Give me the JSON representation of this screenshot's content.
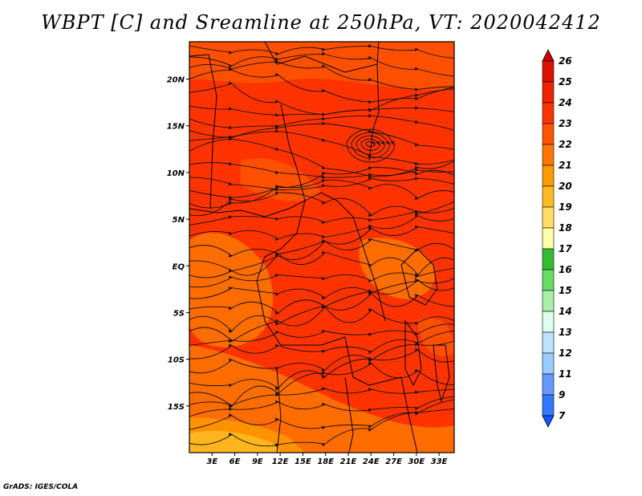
{
  "title": "WBPT [C] and Sreamline at 250hPa, VT: 2020042412",
  "footer": "GrADS: IGES/COLA",
  "map": {
    "lon_range": [
      0,
      35
    ],
    "lat_range": [
      -20,
      24
    ],
    "lat_ticks": [
      {
        "value": 20,
        "label": "20N"
      },
      {
        "value": 15,
        "label": "15N"
      },
      {
        "value": 10,
        "label": "10N"
      },
      {
        "value": 5,
        "label": "5N"
      },
      {
        "value": 0,
        "label": "EQ"
      },
      {
        "value": -5,
        "label": "5S"
      },
      {
        "value": -10,
        "label": "10S"
      },
      {
        "value": -15,
        "label": "15S"
      }
    ],
    "lon_ticks": [
      {
        "value": 3,
        "label": "3E"
      },
      {
        "value": 6,
        "label": "6E"
      },
      {
        "value": 9,
        "label": "9E"
      },
      {
        "value": 12,
        "label": "12E"
      },
      {
        "value": 15,
        "label": "15E"
      },
      {
        "value": 18,
        "label": "18E"
      },
      {
        "value": 21,
        "label": "21E"
      },
      {
        "value": 24,
        "label": "24E"
      },
      {
        "value": 27,
        "label": "27E"
      },
      {
        "value": 30,
        "label": "30E"
      },
      {
        "value": 33,
        "label": "33E"
      }
    ],
    "field_colors": {
      "dominant": "#ff3300",
      "warm": "#ff5500",
      "warmer": "#ff7700",
      "hot": "#ff9900",
      "hottest": "#ffbb22"
    },
    "streamline_color": "#111111",
    "border_color": "#000000"
  },
  "colorbar": {
    "levels": [
      "26",
      "25",
      "24",
      "23",
      "22",
      "21",
      "20",
      "19",
      "18",
      "17",
      "16",
      "15",
      "14",
      "13",
      "12",
      "11",
      "9",
      "7"
    ],
    "colors": [
      "#cc0000",
      "#dd1100",
      "#ee2200",
      "#ff3300",
      "#ff5500",
      "#ff7700",
      "#ff9900",
      "#ffbb22",
      "#ffdd66",
      "#ffffaa",
      "#33bb33",
      "#66dd66",
      "#aaeeaa",
      "#ddffee",
      "#bbe3ff",
      "#99ccff",
      "#6699ff",
      "#3377ff",
      "#1155ff"
    ]
  }
}
